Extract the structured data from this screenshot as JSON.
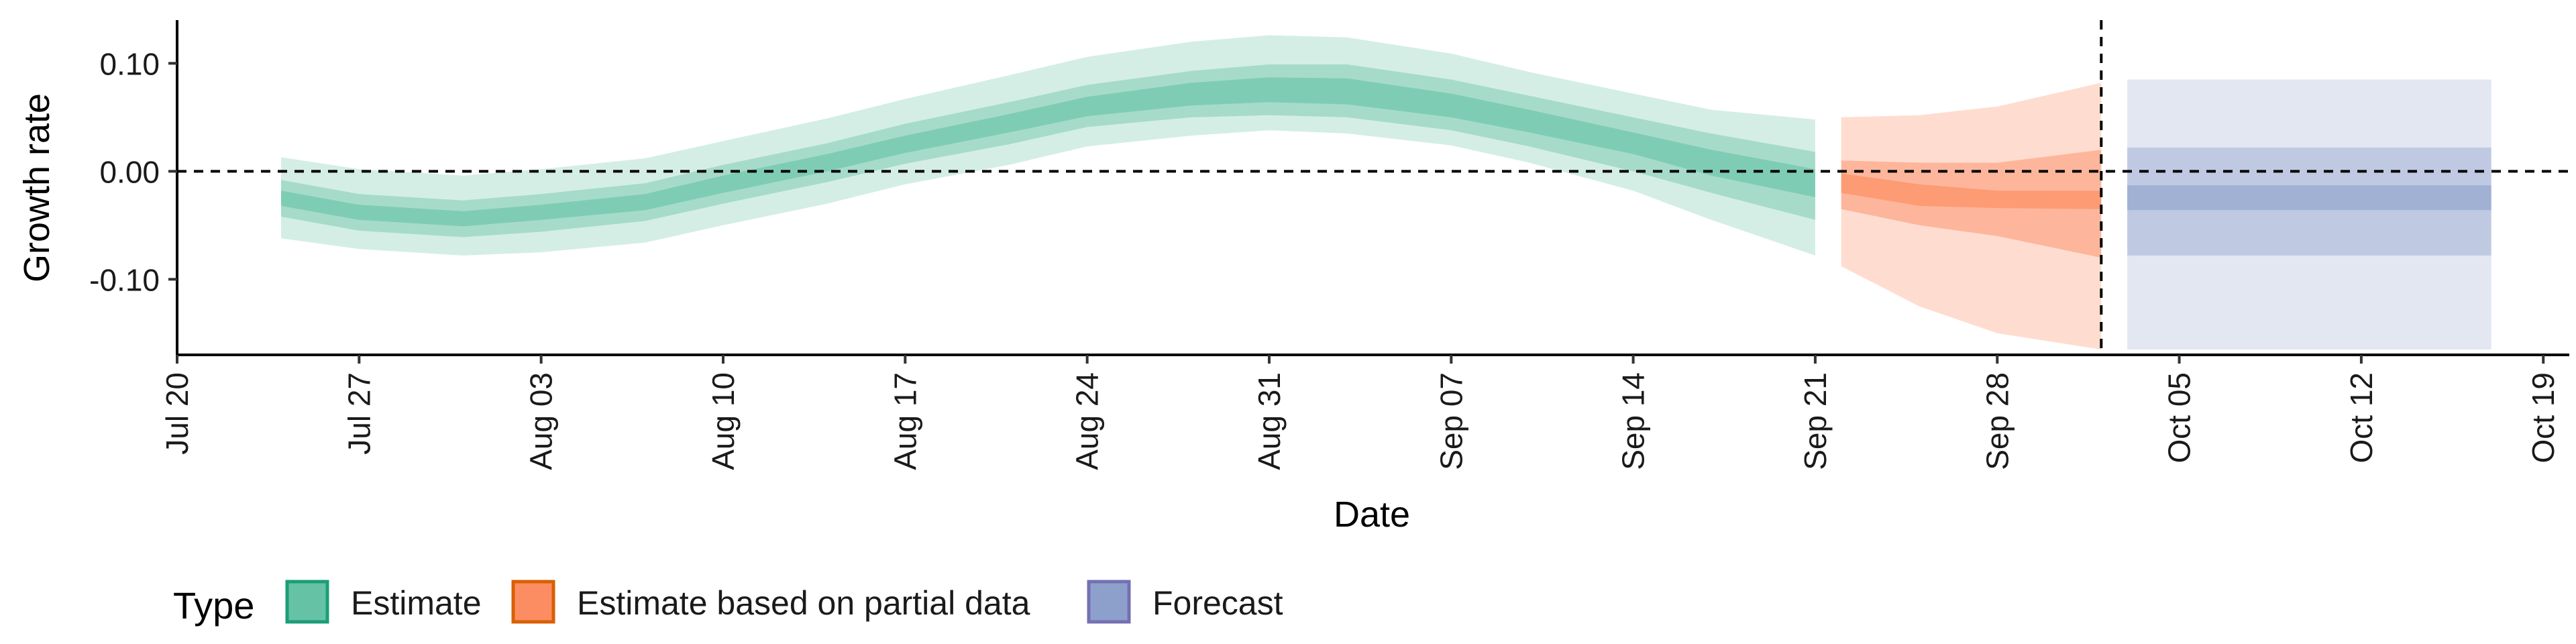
{
  "chart_data": {
    "type": "area",
    "xlabel": "Date",
    "ylabel": "Growth rate",
    "ylim": [
      -0.17,
      0.14
    ],
    "y_ticks": [
      {
        "value": 0.1,
        "label": "0.10"
      },
      {
        "value": 0.0,
        "label": "0.00"
      },
      {
        "value": -0.1,
        "label": "-0.10"
      }
    ],
    "x_ticks": [
      {
        "date": "2020-07-20",
        "label": "Jul 20"
      },
      {
        "date": "2020-07-27",
        "label": "Jul 27"
      },
      {
        "date": "2020-08-03",
        "label": "Aug 03"
      },
      {
        "date": "2020-08-10",
        "label": "Aug 10"
      },
      {
        "date": "2020-08-17",
        "label": "Aug 17"
      },
      {
        "date": "2020-08-24",
        "label": "Aug 24"
      },
      {
        "date": "2020-08-31",
        "label": "Aug 31"
      },
      {
        "date": "2020-09-07",
        "label": "Sep 07"
      },
      {
        "date": "2020-09-14",
        "label": "Sep 14"
      },
      {
        "date": "2020-09-21",
        "label": "Sep 21"
      },
      {
        "date": "2020-09-28",
        "label": "Sep 28"
      },
      {
        "date": "2020-10-05",
        "label": "Oct 05"
      },
      {
        "date": "2020-10-12",
        "label": "Oct 12"
      },
      {
        "date": "2020-10-19",
        "label": "Oct 19"
      }
    ],
    "xlim": [
      "2020-07-20",
      "2020-10-20"
    ],
    "hline": {
      "y": 0.0,
      "style": "dashed"
    },
    "vline": {
      "date": "2020-10-02",
      "style": "dashed"
    },
    "legend": {
      "title": "Type",
      "position": "bottom-left",
      "entries": [
        {
          "label": "Estimate",
          "fill": "#66c2a5",
          "stroke": "#1b9e77"
        },
        {
          "label": "Estimate based on partial data",
          "fill": "#fc8d62",
          "stroke": "#d95f02"
        },
        {
          "label": "Forecast",
          "fill": "#8da0cb",
          "stroke": "#7570b3"
        }
      ]
    },
    "series": [
      {
        "name": "Estimate",
        "color": "#66c2a5",
        "band_opacities": [
          0.28,
          0.42,
          0.6
        ],
        "x": [
          "2020-07-24",
          "2020-07-27",
          "2020-07-31",
          "2020-08-03",
          "2020-08-07",
          "2020-08-10",
          "2020-08-14",
          "2020-08-17",
          "2020-08-21",
          "2020-08-24",
          "2020-08-28",
          "2020-08-31",
          "2020-09-03",
          "2020-09-07",
          "2020-09-10",
          "2020-09-14",
          "2020-09-17",
          "2020-09-21"
        ],
        "median": [
          -0.025,
          -0.038,
          -0.044,
          -0.038,
          -0.028,
          -0.012,
          0.008,
          0.025,
          0.045,
          0.06,
          0.072,
          0.076,
          0.074,
          0.06,
          0.046,
          0.026,
          0.008,
          -0.012
        ],
        "inner_lower": [
          -0.032,
          -0.045,
          -0.051,
          -0.045,
          -0.036,
          -0.02,
          0.0,
          0.017,
          0.036,
          0.051,
          0.061,
          0.064,
          0.062,
          0.05,
          0.036,
          0.016,
          -0.004,
          -0.024
        ],
        "inner_upper": [
          -0.018,
          -0.031,
          -0.037,
          -0.031,
          -0.021,
          -0.004,
          0.016,
          0.033,
          0.053,
          0.069,
          0.082,
          0.087,
          0.086,
          0.072,
          0.057,
          0.036,
          0.02,
          0.002
        ],
        "mid_lower": [
          -0.042,
          -0.055,
          -0.061,
          -0.056,
          -0.046,
          -0.03,
          -0.01,
          0.007,
          0.025,
          0.041,
          0.05,
          0.052,
          0.05,
          0.038,
          0.023,
          0.0,
          -0.02,
          -0.045
        ],
        "mid_upper": [
          -0.008,
          -0.021,
          -0.027,
          -0.021,
          -0.011,
          0.006,
          0.026,
          0.044,
          0.064,
          0.08,
          0.093,
          0.099,
          0.099,
          0.085,
          0.07,
          0.05,
          0.035,
          0.018
        ],
        "outer_lower": [
          -0.062,
          -0.072,
          -0.078,
          -0.075,
          -0.066,
          -0.05,
          -0.03,
          -0.012,
          0.006,
          0.023,
          0.033,
          0.038,
          0.035,
          0.024,
          0.008,
          -0.018,
          -0.045,
          -0.078
        ],
        "outer_upper": [
          0.013,
          0.002,
          -0.004,
          0.002,
          0.012,
          0.028,
          0.049,
          0.067,
          0.089,
          0.106,
          0.12,
          0.126,
          0.124,
          0.109,
          0.092,
          0.072,
          0.057,
          0.048
        ]
      },
      {
        "name": "Estimate based on partial data",
        "color": "#fc8d62",
        "band_opacities": [
          0.3,
          0.48,
          0.68
        ],
        "x": [
          "2020-09-22",
          "2020-09-25",
          "2020-09-28",
          "2020-10-02"
        ],
        "median": [
          -0.012,
          -0.024,
          -0.028,
          -0.028
        ],
        "inner_lower": [
          -0.02,
          -0.032,
          -0.034,
          -0.035
        ],
        "inner_upper": [
          -0.002,
          -0.012,
          -0.018,
          -0.018
        ],
        "mid_lower": [
          -0.035,
          -0.05,
          -0.06,
          -0.08
        ],
        "mid_upper": [
          0.01,
          0.008,
          0.008,
          0.02
        ],
        "outer_lower": [
          -0.088,
          -0.125,
          -0.15,
          -0.165
        ],
        "outer_upper": [
          0.05,
          0.052,
          0.06,
          0.082
        ]
      },
      {
        "name": "Forecast",
        "color": "#8da0cb",
        "band_opacities": [
          0.25,
          0.4,
          0.6
        ],
        "x": [
          "2020-10-03",
          "2020-10-17"
        ],
        "median": [
          -0.03,
          -0.03
        ],
        "inner_lower": [
          -0.036,
          -0.036
        ],
        "inner_upper": [
          -0.013,
          -0.013
        ],
        "mid_lower": [
          -0.078,
          -0.078
        ],
        "mid_upper": [
          0.022,
          0.022
        ],
        "outer_lower": [
          -0.165,
          -0.165
        ],
        "outer_upper": [
          0.085,
          0.085
        ]
      }
    ]
  }
}
